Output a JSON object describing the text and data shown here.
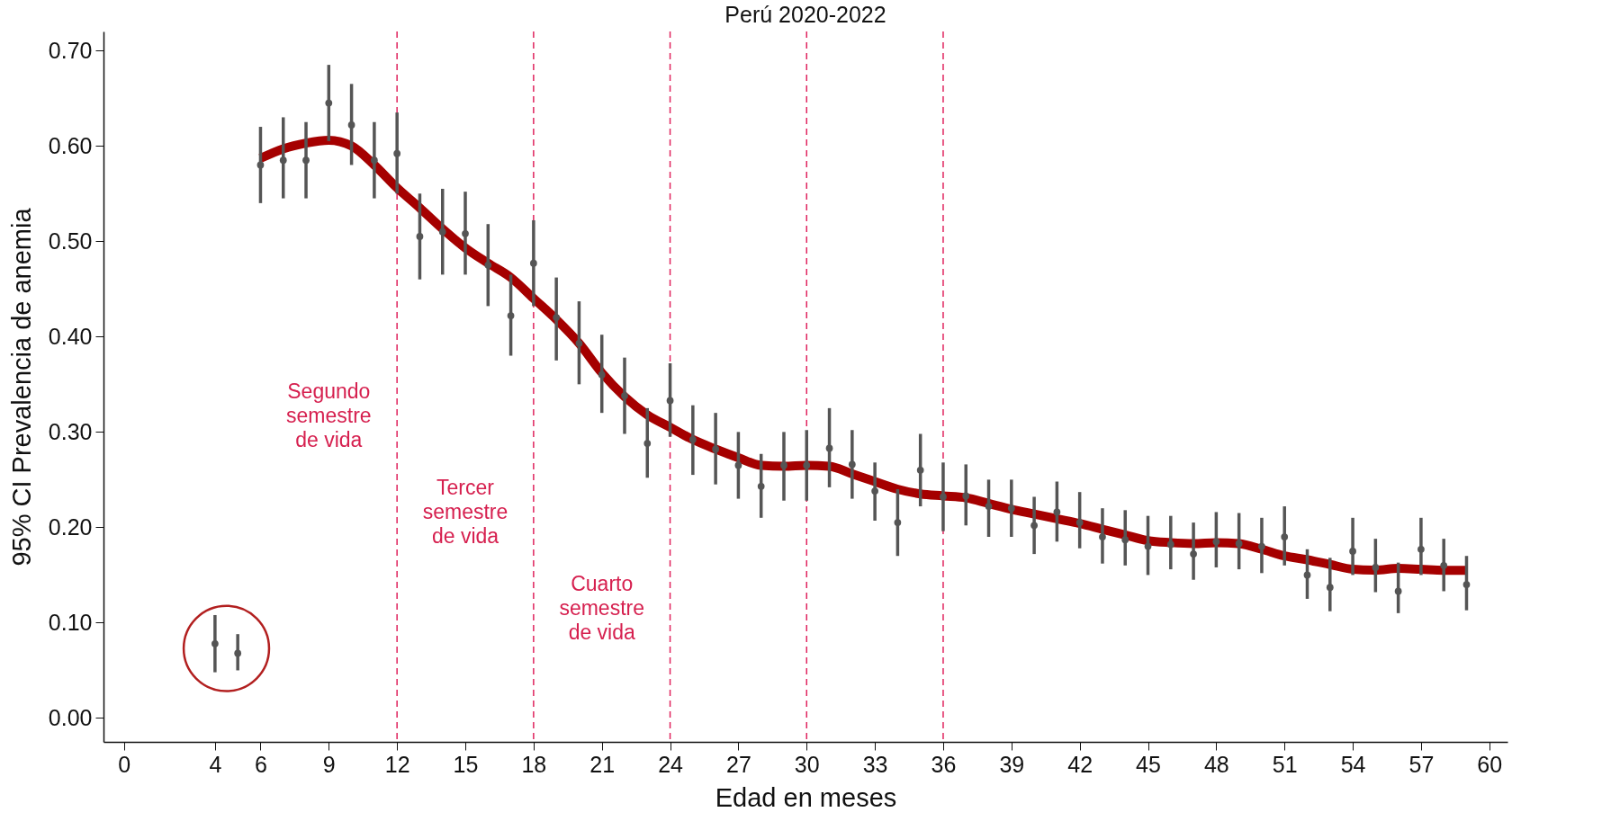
{
  "chart_data": {
    "type": "scatter",
    "title": "Perú 2020-2022",
    "xlabel": "Edad en meses",
    "ylabel": "95% CI Prevalencia de anemia",
    "xlim": [
      -0.9,
      60.8
    ],
    "xticks": [
      0,
      4,
      6,
      9,
      12,
      15,
      18,
      21,
      24,
      27,
      30,
      33,
      36,
      39,
      42,
      45,
      48,
      51,
      54,
      57,
      60
    ],
    "ylim": [
      -0.025,
      0.72
    ],
    "yticks": [
      {
        "value": 0,
        "label": "0.00"
      },
      {
        "value": 0.1,
        "label": "0.10"
      },
      {
        "value": 0.2,
        "label": "0.20"
      },
      {
        "value": 0.3,
        "label": "0.30"
      },
      {
        "value": 0.4,
        "label": "0.40"
      },
      {
        "value": 0.5,
        "label": "0.50"
      },
      {
        "value": 0.6,
        "label": "0.60"
      },
      {
        "value": 0.7,
        "label": "0.70"
      }
    ],
    "grid": false,
    "series": [
      {
        "marker": "circle",
        "color": "#555555",
        "x": [
          4,
          5,
          6,
          7,
          8,
          9,
          10,
          11,
          12,
          13,
          14,
          15,
          16,
          17,
          18,
          19,
          20,
          21,
          22,
          23,
          24,
          25,
          26,
          27,
          28,
          29,
          30,
          31,
          32,
          33,
          34,
          35,
          36,
          37,
          38,
          39,
          40,
          41,
          42,
          43,
          44,
          45,
          46,
          47,
          48,
          49,
          50,
          51,
          52,
          53,
          54,
          55,
          56,
          57,
          58,
          59
        ],
        "values": [
          0.078,
          0.068,
          0.58,
          0.585,
          0.585,
          0.645,
          0.622,
          0.585,
          0.592,
          0.505,
          0.51,
          0.508,
          0.475,
          0.422,
          0.477,
          0.42,
          0.393,
          0.36,
          0.338,
          0.288,
          0.333,
          0.292,
          0.282,
          0.265,
          0.243,
          0.265,
          0.265,
          0.283,
          0.266,
          0.238,
          0.205,
          0.26,
          0.232,
          0.233,
          0.222,
          0.22,
          0.202,
          0.216,
          0.205,
          0.19,
          0.187,
          0.18,
          0.182,
          0.172,
          0.185,
          0.183,
          0.18,
          0.19,
          0.15,
          0.137,
          0.175,
          0.158,
          0.133,
          0.177,
          0.16,
          0.14
        ],
        "errors": [
          [
            0.048,
            0.108
          ],
          [
            0.05,
            0.088
          ],
          [
            0.54,
            0.62
          ],
          [
            0.545,
            0.63
          ],
          [
            0.545,
            0.625
          ],
          [
            0.605,
            0.685
          ],
          [
            0.58,
            0.665
          ],
          [
            0.545,
            0.625
          ],
          [
            0.55,
            0.635
          ],
          [
            0.46,
            0.55
          ],
          [
            0.465,
            0.555
          ],
          [
            0.465,
            0.552
          ],
          [
            0.432,
            0.518
          ],
          [
            0.38,
            0.465
          ],
          [
            0.432,
            0.522
          ],
          [
            0.375,
            0.462
          ],
          [
            0.35,
            0.437
          ],
          [
            0.32,
            0.402
          ],
          [
            0.298,
            0.378
          ],
          [
            0.252,
            0.325
          ],
          [
            0.295,
            0.372
          ],
          [
            0.255,
            0.328
          ],
          [
            0.245,
            0.32
          ],
          [
            0.23,
            0.3
          ],
          [
            0.21,
            0.277
          ],
          [
            0.228,
            0.3
          ],
          [
            0.228,
            0.302
          ],
          [
            0.242,
            0.325
          ],
          [
            0.23,
            0.302
          ],
          [
            0.207,
            0.268
          ],
          [
            0.17,
            0.24
          ],
          [
            0.222,
            0.298
          ],
          [
            0.196,
            0.268
          ],
          [
            0.202,
            0.266
          ],
          [
            0.19,
            0.25
          ],
          [
            0.19,
            0.25
          ],
          [
            0.172,
            0.232
          ],
          [
            0.185,
            0.248
          ],
          [
            0.178,
            0.237
          ],
          [
            0.162,
            0.22
          ],
          [
            0.16,
            0.218
          ],
          [
            0.15,
            0.212
          ],
          [
            0.156,
            0.212
          ],
          [
            0.145,
            0.205
          ],
          [
            0.158,
            0.216
          ],
          [
            0.156,
            0.215
          ],
          [
            0.152,
            0.21
          ],
          [
            0.16,
            0.222
          ],
          [
            0.125,
            0.177
          ],
          [
            0.112,
            0.168
          ],
          [
            0.15,
            0.21
          ],
          [
            0.132,
            0.188
          ],
          [
            0.11,
            0.163
          ],
          [
            0.15,
            0.21
          ],
          [
            0.133,
            0.188
          ],
          [
            0.113,
            0.17
          ]
        ]
      },
      {
        "type": "line",
        "color": "#a50000",
        "x": [
          6,
          7,
          8,
          9,
          10,
          11,
          12,
          13,
          14,
          15,
          16,
          17,
          18,
          19,
          20,
          21,
          22,
          23,
          24,
          25,
          26,
          27,
          28,
          29,
          30,
          31,
          32,
          33,
          34,
          35,
          36,
          37,
          38,
          39,
          40,
          41,
          42,
          43,
          44,
          45,
          46,
          47,
          48,
          49,
          50,
          51,
          52,
          53,
          54,
          55,
          56,
          57,
          58,
          59
        ],
        "values": [
          0.587,
          0.597,
          0.603,
          0.606,
          0.6,
          0.58,
          0.556,
          0.535,
          0.513,
          0.493,
          0.477,
          0.462,
          0.44,
          0.418,
          0.393,
          0.362,
          0.337,
          0.318,
          0.305,
          0.292,
          0.282,
          0.273,
          0.265,
          0.264,
          0.265,
          0.264,
          0.256,
          0.248,
          0.24,
          0.235,
          0.233,
          0.231,
          0.225,
          0.219,
          0.214,
          0.209,
          0.204,
          0.198,
          0.192,
          0.186,
          0.184,
          0.183,
          0.184,
          0.183,
          0.177,
          0.17,
          0.166,
          0.161,
          0.156,
          0.155,
          0.157,
          0.156,
          0.155,
          0.155
        ]
      }
    ],
    "ref_lines": [
      {
        "axis": "x",
        "value": 12,
        "color": "#e0245e",
        "line_style": "dashed"
      },
      {
        "axis": "x",
        "value": 18,
        "color": "#e0245e",
        "line_style": "dashed"
      },
      {
        "axis": "x",
        "value": 24,
        "color": "#e0245e",
        "line_style": "dashed"
      },
      {
        "axis": "x",
        "value": 30,
        "color": "#e0245e",
        "line_style": "dashed"
      },
      {
        "axis": "x",
        "value": 36,
        "color": "#e0245e",
        "line_style": "dashed"
      }
    ],
    "annotations": [
      "Segundo\nsemestre\nde vida",
      "Tercer\nsemestre\nde vida",
      "Cuarto\nsemestre\nde vida"
    ]
  }
}
